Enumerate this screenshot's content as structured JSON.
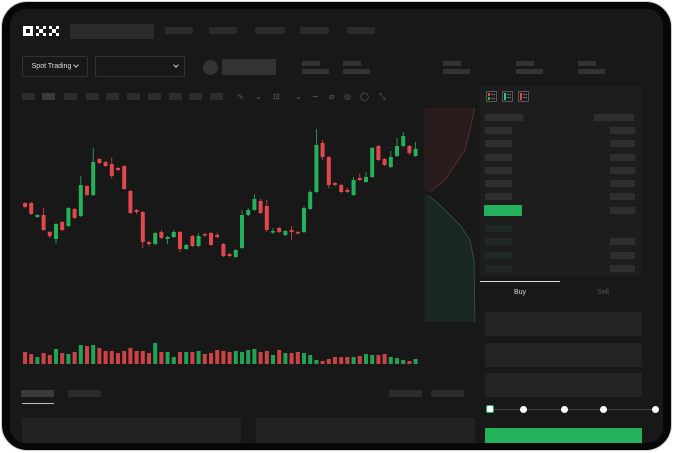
{
  "logo": {
    "text": "OKX"
  },
  "toolbar": {
    "market_select_label": "Spot Trading",
    "pair_select_value": ""
  },
  "trade": {
    "tabs": [
      {
        "label": "Buy",
        "active": true
      },
      {
        "label": "Sell",
        "active": false
      }
    ],
    "slider_percent": 0,
    "submit_color": "#23b15c"
  },
  "icons": [
    "chevron-down-icon",
    "indicator-icon",
    "draw-line-icon",
    "pencil-icon",
    "camera-icon",
    "settings-icon",
    "fullscreen-icon",
    "orderbook-both-icon",
    "orderbook-bids-icon",
    "orderbook-asks-icon"
  ],
  "colors": {
    "up": "#23b15c",
    "down": "#e0484d",
    "background": "#181818"
  },
  "chart_data": {
    "type": "candlestick",
    "candles": [
      [
        97,
        93,
        98,
        92
      ],
      [
        97,
        86,
        98,
        85
      ],
      [
        83,
        85,
        86,
        82
      ],
      [
        85,
        70,
        92,
        69
      ],
      [
        68,
        64,
        69,
        62
      ],
      [
        61,
        76,
        77,
        56
      ],
      [
        78,
        70,
        79,
        69
      ],
      [
        74,
        92,
        93,
        73
      ],
      [
        91,
        82,
        92,
        81
      ],
      [
        84,
        115,
        124,
        83
      ],
      [
        114,
        105,
        115,
        104
      ],
      [
        105,
        138,
        152,
        104
      ],
      [
        141,
        137,
        142,
        136
      ],
      [
        138,
        134,
        139,
        133
      ],
      [
        136,
        124,
        142,
        122
      ],
      [
        132,
        130,
        133,
        129
      ],
      [
        134,
        111,
        135,
        110
      ],
      [
        109,
        87,
        110,
        86
      ],
      [
        90,
        88,
        91,
        86
      ],
      [
        88,
        58,
        89,
        52
      ],
      [
        58,
        56,
        59,
        54
      ],
      [
        56,
        67,
        68,
        55
      ],
      [
        68,
        62,
        70,
        61
      ],
      [
        61,
        63,
        64,
        56
      ],
      [
        63,
        68,
        70,
        62
      ],
      [
        68,
        51,
        69,
        48
      ],
      [
        51,
        55,
        56,
        50
      ],
      [
        64,
        54,
        65,
        53
      ],
      [
        54,
        64,
        67,
        53
      ],
      [
        66,
        65,
        67,
        63
      ],
      [
        67,
        55,
        68,
        54
      ],
      [
        65,
        63,
        67,
        62
      ],
      [
        56,
        44,
        57,
        43
      ],
      [
        46,
        44,
        47,
        43
      ],
      [
        43,
        50,
        51,
        42
      ],
      [
        52,
        85,
        90,
        51
      ],
      [
        85,
        90,
        92,
        84
      ],
      [
        90,
        101,
        106,
        89
      ],
      [
        99,
        87,
        101,
        86
      ],
      [
        94,
        70,
        100,
        68
      ],
      [
        68,
        69,
        72,
        66
      ],
      [
        72,
        68,
        73,
        67
      ],
      [
        65,
        69,
        70,
        64
      ],
      [
        70,
        68,
        74,
        60
      ],
      [
        68,
        67,
        69,
        66
      ],
      [
        68,
        92,
        94,
        67
      ],
      [
        91,
        108,
        110,
        90
      ],
      [
        108,
        155,
        171,
        107
      ],
      [
        157,
        143,
        160,
        140
      ],
      [
        143,
        115,
        144,
        112
      ],
      [
        117,
        115,
        118,
        114
      ],
      [
        115,
        108,
        116,
        107
      ],
      [
        110,
        108,
        112,
        107
      ],
      [
        105,
        120,
        123,
        104
      ],
      [
        122,
        120,
        126,
        119
      ],
      [
        118,
        123,
        128,
        117
      ],
      [
        123,
        152,
        153,
        122
      ],
      [
        154,
        140,
        155,
        139
      ],
      [
        141,
        135,
        142,
        134
      ],
      [
        133,
        143,
        149,
        132
      ],
      [
        144,
        154,
        162,
        143
      ],
      [
        154,
        164,
        168,
        153
      ],
      [
        154,
        147,
        155,
        145
      ],
      [
        144,
        151,
        158,
        143
      ]
    ],
    "candle_format": [
      "open",
      "close",
      "high",
      "low"
    ],
    "volume": [
      12,
      10,
      7,
      11,
      9,
      15,
      11,
      10,
      12,
      19,
      18,
      19,
      16,
      13,
      13,
      11,
      13,
      16,
      13,
      13,
      11,
      21,
      12,
      12,
      7,
      12,
      12,
      12,
      13,
      10,
      11,
      14,
      13,
      12,
      13,
      12,
      14,
      15,
      12,
      13,
      9,
      14,
      11,
      11,
      12,
      11,
      9,
      4,
      3,
      5,
      7,
      7,
      7,
      7,
      8,
      10,
      9,
      9,
      10,
      7,
      6,
      4,
      3,
      5
    ],
    "grid": true
  }
}
